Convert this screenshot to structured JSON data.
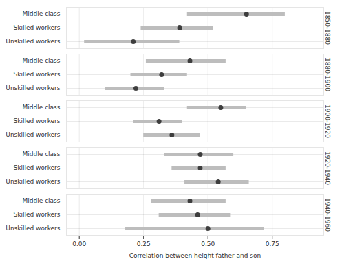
{
  "chart_data": {
    "type": "dot_interval",
    "x_label": "Correlation between height father and son",
    "xlim": [
      -0.05,
      0.95
    ],
    "xticks": [
      {
        "value": 0,
        "label": "0.00"
      },
      {
        "value": 0.25,
        "label": "0.25"
      },
      {
        "value": 0.5,
        "label": "0.50"
      },
      {
        "value": 0.75,
        "label": "0.75"
      }
    ],
    "grid": true,
    "color": "#3d3d3d",
    "panels": [
      {
        "title": "1850-1880",
        "categories": [
          "Middle class",
          "Skilled workers",
          "Unskilled workers"
        ],
        "values": [
          0.65,
          0.39,
          0.21
        ],
        "lower": [
          0.42,
          0.24,
          0.02
        ],
        "upper": [
          0.8,
          0.52,
          0.39
        ]
      },
      {
        "title": "1880-1900",
        "categories": [
          "Middle class",
          "Skilled workers",
          "Unskilled workers"
        ],
        "values": [
          0.43,
          0.32,
          0.22
        ],
        "lower": [
          0.26,
          0.2,
          0.1
        ],
        "upper": [
          0.57,
          0.42,
          0.33
        ]
      },
      {
        "title": "1900-1920",
        "categories": [
          "Middle class",
          "Skilled workers",
          "Unskilled workers"
        ],
        "values": [
          0.55,
          0.31,
          0.36
        ],
        "lower": [
          0.42,
          0.21,
          0.25
        ],
        "upper": [
          0.65,
          0.4,
          0.47
        ]
      },
      {
        "title": "1920-1940",
        "categories": [
          "Middle class",
          "Skilled workers",
          "Unskilled workers"
        ],
        "values": [
          0.47,
          0.47,
          0.54
        ],
        "lower": [
          0.33,
          0.36,
          0.41
        ],
        "upper": [
          0.6,
          0.57,
          0.66
        ]
      },
      {
        "title": "1940-1960",
        "categories": [
          "Middle class",
          "Skilled workers",
          "Unskilled workers"
        ],
        "values": [
          0.43,
          0.46,
          0.5
        ],
        "lower": [
          0.28,
          0.31,
          0.18
        ],
        "upper": [
          0.57,
          0.59,
          0.72
        ]
      }
    ]
  }
}
